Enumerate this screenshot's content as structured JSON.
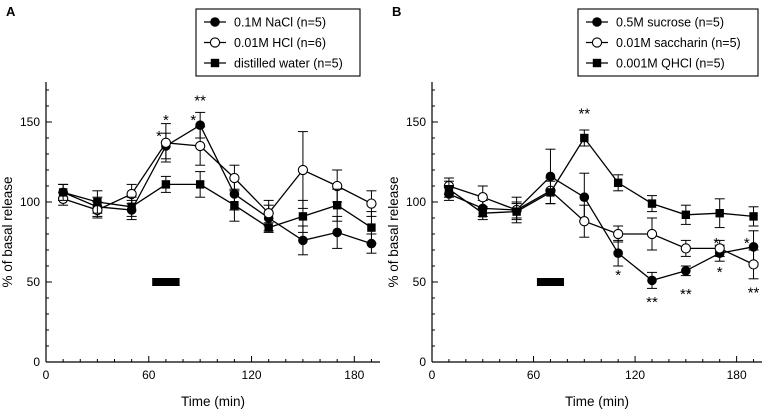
{
  "chart_data": [
    {
      "type": "line",
      "panel": "A",
      "xlabel": "Time (min)",
      "ylabel": "% of basal release",
      "xlim": [
        0,
        195
      ],
      "ylim": [
        0,
        175
      ],
      "xticks": [
        0,
        60,
        120,
        180
      ],
      "yticks": [
        0,
        50,
        100,
        150
      ],
      "stimulus": {
        "start": 62,
        "end": 78,
        "y": 50
      },
      "legend_position": "top-right",
      "series": [
        {
          "name": "0.1M NaCl (n=5)",
          "marker": "filled-circle",
          "x": [
            10,
            30,
            50,
            70,
            90,
            110,
            130,
            150,
            170,
            190
          ],
          "y": [
            106,
            97,
            95,
            135,
            148,
            105,
            90,
            76,
            81,
            74
          ],
          "err": [
            5,
            6,
            6,
            8,
            8,
            10,
            8,
            9,
            10,
            6
          ]
        },
        {
          "name": "0.01M HCl (n=6)",
          "marker": "open-circle",
          "x": [
            10,
            30,
            50,
            70,
            90,
            110,
            130,
            150,
            170,
            190
          ],
          "y": [
            102,
            95,
            105,
            137,
            135,
            115,
            93,
            120,
            110,
            99
          ],
          "err": [
            4,
            5,
            6,
            12,
            12,
            8,
            8,
            24,
            10,
            8
          ]
        },
        {
          "name": "distilled water (n=5)",
          "marker": "filled-square",
          "x": [
            10,
            30,
            50,
            70,
            90,
            110,
            130,
            150,
            170,
            190
          ],
          "y": [
            106,
            100,
            97,
            111,
            111,
            98,
            84,
            91,
            98,
            84
          ],
          "err": [
            5,
            7,
            6,
            5,
            8,
            10,
            3,
            10,
            10,
            10
          ]
        }
      ],
      "annotations": [
        {
          "text": "*",
          "x": 70,
          "y": 152
        },
        {
          "text": "*",
          "x": 66,
          "y": 142
        },
        {
          "text": "**",
          "x": 90,
          "y": 164
        },
        {
          "text": "*",
          "x": 86,
          "y": 152
        }
      ]
    },
    {
      "type": "line",
      "panel": "B",
      "xlabel": "Time (min)",
      "ylabel": "% of basal release",
      "xlim": [
        0,
        195
      ],
      "ylim": [
        0,
        175
      ],
      "xticks": [
        0,
        60,
        120,
        180
      ],
      "yticks": [
        0,
        50,
        100,
        150
      ],
      "stimulus": {
        "start": 62,
        "end": 78,
        "y": 50
      },
      "legend_position": "top-right",
      "series": [
        {
          "name": "0.5M sucrose (n=5)",
          "marker": "filled-circle",
          "x": [
            10,
            30,
            50,
            70,
            90,
            110,
            130,
            150,
            170,
            190
          ],
          "y": [
            105,
            96,
            95,
            116,
            103,
            68,
            51,
            57,
            68,
            72
          ],
          "err": [
            4,
            5,
            5,
            17,
            15,
            8,
            5,
            3,
            5,
            10
          ]
        },
        {
          "name": "0.01M saccharin (n=5)",
          "marker": "open-circle",
          "x": [
            10,
            30,
            50,
            70,
            90,
            110,
            130,
            150,
            170,
            190
          ],
          "y": [
            110,
            103,
            95,
            107,
            88,
            80,
            80,
            71,
            71,
            61
          ],
          "err": [
            5,
            7,
            8,
            8,
            10,
            5,
            10,
            5,
            5,
            9
          ]
        },
        {
          "name": "0.001M QHCl (n=5)",
          "marker": "filled-square",
          "x": [
            10,
            30,
            50,
            70,
            90,
            110,
            130,
            150,
            170,
            190
          ],
          "y": [
            108,
            93,
            94,
            106,
            140,
            112,
            99,
            92,
            93,
            91
          ],
          "err": [
            5,
            4,
            5,
            7,
            5,
            5,
            5,
            6,
            9,
            6
          ]
        }
      ],
      "annotations": [
        {
          "text": "**",
          "x": 90,
          "y": 156
        },
        {
          "text": "*",
          "x": 110,
          "y": 55
        },
        {
          "text": "**",
          "x": 130,
          "y": 38
        },
        {
          "text": "**",
          "x": 150,
          "y": 43
        },
        {
          "text": "*",
          "x": 168,
          "y": 75
        },
        {
          "text": "*",
          "x": 170,
          "y": 57
        },
        {
          "text": "*",
          "x": 186,
          "y": 75
        },
        {
          "text": "**",
          "x": 190,
          "y": 44
        }
      ]
    }
  ]
}
